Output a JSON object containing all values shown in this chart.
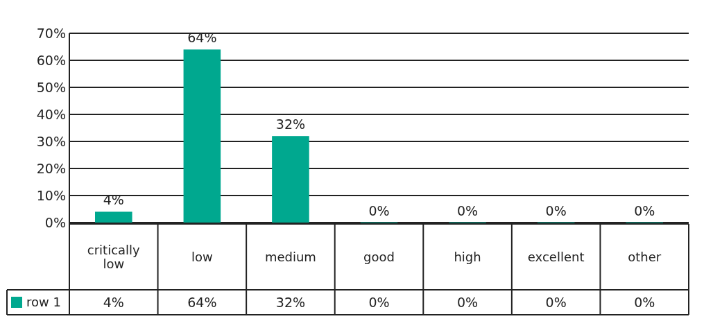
{
  "chart_data": {
    "type": "bar",
    "categories": [
      "critically low",
      "low",
      "medium",
      "good",
      "high",
      "excellent",
      "other"
    ],
    "series": [
      {
        "name": "row 1",
        "color": "#00a88f",
        "values": [
          4,
          64,
          32,
          0,
          0,
          0,
          0
        ]
      }
    ],
    "value_labels": [
      "4%",
      "64%",
      "32%",
      "0%",
      "0%",
      "0%",
      "0%"
    ],
    "ylim": [
      0,
      70
    ],
    "yticks": [
      {
        "value": 0,
        "label": "0%"
      },
      {
        "value": 10,
        "label": "10%"
      },
      {
        "value": 20,
        "label": "20%"
      },
      {
        "value": 30,
        "label": "30%"
      },
      {
        "value": 40,
        "label": "40%"
      },
      {
        "value": 50,
        "label": "50%"
      },
      {
        "value": 60,
        "label": "60%"
      },
      {
        "value": 70,
        "label": "70%"
      }
    ],
    "grid": true
  }
}
